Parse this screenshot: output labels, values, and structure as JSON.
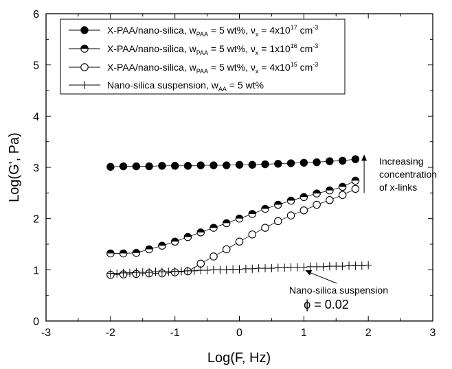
{
  "chart_data": {
    "type": "scatter",
    "xlabel": "Log(F, Hz)",
    "ylabel": "Log(G', Pa)",
    "xlim": [
      -3,
      3
    ],
    "ylim": [
      0,
      6
    ],
    "xticks": [
      "-3",
      "-2",
      "-1",
      "0",
      "1",
      "2",
      "3"
    ],
    "yticks": [
      "0",
      "1",
      "2",
      "3",
      "4",
      "5",
      "6"
    ],
    "grid": false,
    "legend_position": "top-left",
    "series": [
      {
        "name_main": "X-PAA/nano-silica, w",
        "name_sub": "PAA",
        "name_mid": " = 5 wt%, ν",
        "name_sub2": "x",
        "name_mid2": " = 4x10",
        "name_sup": "17",
        "name_unit": " cm",
        "name_sup2": "-3",
        "marker": "filled-circle",
        "x": [
          -2.0,
          -1.8,
          -1.6,
          -1.4,
          -1.2,
          -1.0,
          -0.8,
          -0.6,
          -0.4,
          -0.2,
          0.0,
          0.2,
          0.4,
          0.6,
          0.8,
          1.0,
          1.2,
          1.4,
          1.6,
          1.8
        ],
        "y": [
          3.01,
          3.02,
          3.02,
          3.02,
          3.03,
          3.03,
          3.03,
          3.04,
          3.04,
          3.04,
          3.05,
          3.05,
          3.06,
          3.07,
          3.08,
          3.09,
          3.1,
          3.12,
          3.13,
          3.16
        ]
      },
      {
        "name_main": "X-PAA/nano-silica, w",
        "name_sub": "PAA",
        "name_mid": " = 5 wt%, ν",
        "name_sub2": "x",
        "name_mid2": " = 1x10",
        "name_sup": "16",
        "name_unit": " cm",
        "name_sup2": "-3",
        "marker": "half-filled-circle",
        "x": [
          -2.0,
          -1.8,
          -1.6,
          -1.4,
          -1.2,
          -1.0,
          -0.8,
          -0.6,
          -0.4,
          -0.2,
          0.0,
          0.2,
          0.4,
          0.6,
          0.8,
          1.0,
          1.2,
          1.4,
          1.6,
          1.8
        ],
        "y": [
          1.32,
          1.32,
          1.33,
          1.4,
          1.47,
          1.55,
          1.64,
          1.73,
          1.82,
          1.91,
          2.0,
          2.09,
          2.19,
          2.27,
          2.35,
          2.42,
          2.49,
          2.55,
          2.62,
          2.74
        ]
      },
      {
        "name_main": "X-PAA/nano-silica, w",
        "name_sub": "PAA",
        "name_mid": " = 5 wt%, ν",
        "name_sub2": "x",
        "name_mid2": " = 4x10",
        "name_sup": "15",
        "name_unit": " cm",
        "name_sup2": "-3",
        "marker": "open-circle",
        "x": [
          -2.0,
          -1.8,
          -1.6,
          -1.4,
          -1.2,
          -1.0,
          -0.8,
          -0.6,
          -0.4,
          -0.2,
          0.0,
          0.2,
          0.4,
          0.6,
          0.8,
          1.0,
          1.2,
          1.4,
          1.6,
          1.8
        ],
        "y": [
          0.9,
          0.91,
          0.92,
          0.93,
          0.93,
          0.95,
          0.97,
          1.12,
          1.26,
          1.4,
          1.55,
          1.69,
          1.82,
          1.95,
          2.06,
          2.16,
          2.27,
          2.36,
          2.46,
          2.58
        ]
      },
      {
        "name_main": "Nano-silica suspension, w",
        "name_sub": "AA",
        "name_mid": " = 5 wt%",
        "name_sub2": "",
        "name_mid2": "",
        "name_sup": "",
        "name_unit": "",
        "name_sup2": "",
        "marker": "plus",
        "x": [
          -2.0,
          -1.9,
          -1.8,
          -1.7,
          -1.6,
          -1.5,
          -1.4,
          -1.3,
          -1.2,
          -1.1,
          -1.0,
          -0.9,
          -0.8,
          -0.7,
          -0.6,
          -0.5,
          -0.4,
          -0.3,
          -0.2,
          -0.1,
          0.0,
          0.1,
          0.2,
          0.3,
          0.4,
          0.5,
          0.6,
          0.7,
          0.8,
          0.9,
          1.0,
          1.1,
          1.2,
          1.3,
          1.4,
          1.5,
          1.6,
          1.7,
          1.8,
          1.9,
          2.0
        ],
        "y": [
          0.93,
          0.93,
          0.94,
          0.94,
          0.95,
          0.95,
          0.95,
          0.96,
          0.96,
          0.96,
          0.97,
          0.97,
          0.98,
          0.98,
          0.99,
          0.99,
          1.0,
          1.0,
          1.0,
          1.01,
          1.01,
          1.02,
          1.02,
          1.03,
          1.03,
          1.03,
          1.04,
          1.04,
          1.05,
          1.05,
          1.05,
          1.06,
          1.06,
          1.06,
          1.07,
          1.07,
          1.07,
          1.08,
          1.08,
          1.08,
          1.09
        ]
      }
    ],
    "annotations": [
      {
        "lines": [
          "Increasing",
          "concentration",
          "of x-links"
        ],
        "arrow": "up",
        "arrow_x": 1.85,
        "arrow_y_from": 2.5,
        "arrow_y_to": 3.25
      },
      {
        "text": "Nano-silica suspension",
        "phi_text": "ϕ = 0.02",
        "arrow_to": [
          1.0,
          1.03
        ]
      }
    ]
  }
}
